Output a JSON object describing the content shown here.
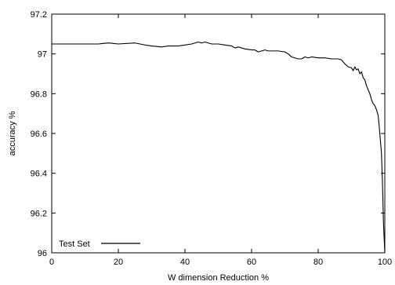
{
  "chart_data": {
    "type": "line",
    "title": "",
    "xlabel": "W dimension Reduction %",
    "ylabel": "accuracy %",
    "xlim": [
      0,
      100
    ],
    "ylim": [
      96,
      97.2
    ],
    "xticks": [
      0,
      20,
      40,
      60,
      80,
      100
    ],
    "xtick_labels": [
      "0",
      "20",
      "40",
      "60",
      "80",
      "100"
    ],
    "yticks": [
      96,
      96.2,
      96.4,
      96.6,
      96.8,
      97,
      97.2
    ],
    "ytick_labels": [
      "96",
      "96.2",
      "96.4",
      "96.6",
      "96.8",
      "97",
      "97.2"
    ],
    "grid": false,
    "legend_position": "bottom-left",
    "series": [
      {
        "name": "Test Set",
        "color": "#000000",
        "x": [
          0,
          5,
          10,
          14,
          17,
          20,
          25,
          28,
          30,
          33,
          35,
          38,
          40,
          42,
          44,
          45,
          46,
          48,
          50,
          52,
          54,
          55,
          56,
          58,
          60,
          61,
          62,
          63,
          64,
          65,
          68,
          70,
          71,
          72,
          73,
          74,
          75,
          76,
          77,
          78,
          80,
          82,
          84,
          86,
          87,
          88,
          89,
          90,
          90.5,
          91,
          91.5,
          92,
          92.5,
          93,
          93.5,
          94,
          94.5,
          95,
          95.5,
          96,
          96.5,
          97,
          97.5,
          98,
          98.3,
          98.6,
          99,
          99.3,
          99.6,
          100
        ],
        "y": [
          97.05,
          97.05,
          97.05,
          97.05,
          97.055,
          97.05,
          97.055,
          97.045,
          97.04,
          97.035,
          97.04,
          97.04,
          97.045,
          97.05,
          97.06,
          97.055,
          97.06,
          97.05,
          97.05,
          97.045,
          97.04,
          97.03,
          97.035,
          97.025,
          97.02,
          97.02,
          97.01,
          97.015,
          97.02,
          97.015,
          97.015,
          97.01,
          97.0,
          96.985,
          96.98,
          96.975,
          96.975,
          96.985,
          96.98,
          96.985,
          96.98,
          96.98,
          96.975,
          96.975,
          96.97,
          96.95,
          96.935,
          96.93,
          96.915,
          96.935,
          96.92,
          96.925,
          96.9,
          96.91,
          96.88,
          96.87,
          96.84,
          96.82,
          96.8,
          96.77,
          96.75,
          96.74,
          96.72,
          96.69,
          96.64,
          96.58,
          96.5,
          96.35,
          96.15,
          96.0
        ]
      }
    ]
  }
}
